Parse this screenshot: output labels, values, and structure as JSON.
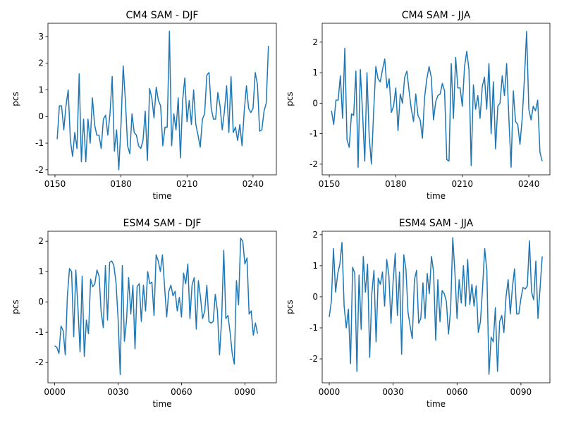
{
  "chart_data": [
    {
      "type": "line",
      "title": "CM4 SAM - DJF",
      "xlabel": "time",
      "ylabel": "pcs",
      "color": "#1f77b4",
      "x": [
        151,
        152,
        153,
        154,
        155,
        156,
        157,
        158,
        159,
        160,
        161,
        162,
        163,
        164,
        165,
        166,
        167,
        168,
        169,
        170,
        171,
        172,
        173,
        174,
        175,
        176,
        177,
        178,
        179,
        180,
        181,
        182,
        183,
        184,
        185,
        186,
        187,
        188,
        189,
        190,
        191,
        192,
        193,
        194,
        195,
        196,
        197,
        198,
        199,
        200,
        201,
        202,
        203,
        204,
        205,
        206,
        207,
        208,
        209,
        210,
        211,
        212,
        213,
        214,
        215,
        216,
        217,
        218,
        219,
        220,
        221,
        222,
        223,
        224,
        225,
        226,
        227,
        228,
        229,
        230,
        231,
        232,
        233,
        234,
        235,
        236,
        237,
        238,
        239,
        240,
        241,
        242,
        243,
        244,
        245,
        246,
        247
      ],
      "values": [
        -0.85,
        0.4,
        0.4,
        -0.5,
        0.4,
        1.0,
        -0.9,
        -1.5,
        -0.6,
        -1.2,
        1.6,
        -1.7,
        -0.1,
        -1.7,
        -0.1,
        -1.0,
        0.7,
        -0.3,
        -0.7,
        -0.7,
        -1.2,
        -0.1,
        0.05,
        -0.7,
        0.1,
        1.5,
        -1.3,
        -0.5,
        -2.0,
        -0.3,
        1.9,
        0.6,
        -1.1,
        -1.4,
        0.1,
        -0.6,
        -0.7,
        -1.1,
        -1.2,
        -0.9,
        0.2,
        -1.65,
        1.05,
        0.7,
        -0.05,
        1.1,
        0.6,
        0.4,
        -1.1,
        -0.4,
        -0.4,
        3.2,
        -1.1,
        0.1,
        -0.5,
        0.7,
        -1.55,
        0.6,
        1.45,
        -0.2,
        0.6,
        -0.3,
        1.0,
        -0.3,
        -0.7,
        -1.15,
        -0.1,
        0.1,
        1.55,
        1.65,
        0.3,
        -0.1,
        -0.1,
        0.9,
        0.4,
        -0.5,
        0.2,
        1.15,
        -0.6,
        1.5,
        -0.6,
        -0.4,
        -0.9,
        -0.3,
        -1.1,
        0.2,
        1.15,
        0.3,
        0.15,
        0.3,
        1.65,
        1.2,
        -0.55,
        -0.5,
        0.2,
        0.5,
        2.65
      ],
      "xlim": [
        146.8,
        250.6
      ],
      "ylim": [
        -2.19,
        3.5
      ],
      "xticks": [
        {
          "value": 150,
          "label": "0150"
        },
        {
          "value": 180,
          "label": "0180"
        },
        {
          "value": 210,
          "label": "0210"
        },
        {
          "value": 240,
          "label": "0240"
        }
      ],
      "yticks": [
        -2,
        -1,
        0,
        1,
        2,
        3
      ]
    },
    {
      "type": "line",
      "title": "CM4 SAM - JJA",
      "xlabel": "time",
      "ylabel": "pcs",
      "color": "#1f77b4",
      "x": [
        151,
        152,
        153,
        154,
        155,
        156,
        157,
        158,
        159,
        160,
        161,
        162,
        163,
        164,
        165,
        166,
        167,
        168,
        169,
        170,
        171,
        172,
        173,
        174,
        175,
        176,
        177,
        178,
        179,
        180,
        181,
        182,
        183,
        184,
        185,
        186,
        187,
        188,
        189,
        190,
        191,
        192,
        193,
        194,
        195,
        196,
        197,
        198,
        199,
        200,
        201,
        202,
        203,
        204,
        205,
        206,
        207,
        208,
        209,
        210,
        211,
        212,
        213,
        214,
        215,
        216,
        217,
        218,
        219,
        220,
        221,
        222,
        223,
        224,
        225,
        226,
        227,
        228,
        229,
        230,
        231,
        232,
        233,
        234,
        235,
        236,
        237,
        238,
        239,
        240,
        241,
        242,
        243,
        244,
        245,
        246
      ],
      "values": [
        -0.25,
        -0.7,
        0.1,
        0.1,
        0.9,
        -0.5,
        1.8,
        -1.2,
        -1.45,
        -0.35,
        -0.4,
        1.05,
        -2.1,
        1.1,
        -0.3,
        -1.9,
        1.0,
        -1.1,
        -2.0,
        -0.3,
        1.2,
        0.8,
        0.7,
        1.1,
        1.45,
        0.5,
        0.8,
        -0.3,
        -0.1,
        0.5,
        -0.9,
        0.3,
        0.0,
        0.85,
        1.05,
        0.4,
        -0.2,
        -0.6,
        0.3,
        -0.4,
        -0.55,
        -1.15,
        0.2,
        0.8,
        1.2,
        0.85,
        -0.55,
        0.05,
        0.25,
        0.3,
        0.65,
        0.4,
        -1.85,
        -1.9,
        1.3,
        -0.5,
        1.5,
        0.5,
        0.5,
        -0.1,
        1.2,
        1.7,
        1.1,
        -2.05,
        0.6,
        -0.2,
        0.25,
        -0.5,
        0.55,
        0.85,
        -0.2,
        1.3,
        -1.0,
        0.7,
        -1.5,
        -0.1,
        0.0,
        0.9,
        0.25,
        1.3,
        -0.5,
        -2.1,
        0.4,
        -0.6,
        -0.7,
        -1.35,
        -0.5,
        0.8,
        2.35,
        -0.2,
        -0.55,
        -0.1,
        -0.25,
        0.1,
        -1.6,
        -1.9
      ],
      "xlim": [
        146.8,
        249.5
      ],
      "ylim": [
        -2.35,
        2.62
      ],
      "xticks": [
        {
          "value": 150,
          "label": "0150"
        },
        {
          "value": 180,
          "label": "0180"
        },
        {
          "value": 210,
          "label": "0210"
        },
        {
          "value": 240,
          "label": "0240"
        }
      ],
      "yticks": [
        -2,
        -1,
        0,
        1,
        2
      ]
    },
    {
      "type": "line",
      "title": "ESM4 SAM - DJF",
      "xlabel": "time",
      "ylabel": "pcs",
      "color": "#1f77b4",
      "x": [
        0,
        1,
        2,
        3,
        4,
        5,
        6,
        7,
        8,
        9,
        10,
        11,
        12,
        13,
        14,
        15,
        16,
        17,
        18,
        19,
        20,
        21,
        22,
        23,
        24,
        25,
        26,
        27,
        28,
        29,
        30,
        31,
        32,
        33,
        34,
        35,
        36,
        37,
        38,
        39,
        40,
        41,
        42,
        43,
        44,
        45,
        46,
        47,
        48,
        49,
        50,
        51,
        52,
        53,
        54,
        55,
        56,
        57,
        58,
        59,
        60,
        61,
        62,
        63,
        64,
        65,
        66,
        67,
        68,
        69,
        70,
        71,
        72,
        73,
        74,
        75,
        76,
        77,
        78,
        79,
        80,
        81,
        82,
        83,
        84,
        85,
        86,
        87,
        88,
        89,
        90,
        91,
        92,
        93,
        94,
        95,
        96
      ],
      "values": [
        -1.45,
        -1.5,
        -1.7,
        -0.8,
        -0.95,
        -1.75,
        0.2,
        1.1,
        1.0,
        -1.15,
        1.05,
        -0.2,
        -1.65,
        0.85,
        -1.8,
        -0.6,
        -1.05,
        0.75,
        0.5,
        0.6,
        1.05,
        0.85,
        -0.35,
        -0.85,
        1.2,
        -0.6,
        1.3,
        1.35,
        1.2,
        0.65,
        -0.55,
        -2.4,
        1.2,
        -1.3,
        -0.6,
        0.8,
        -0.4,
        0.55,
        -1.55,
        0.5,
        0.6,
        -0.65,
        0.55,
        -0.3,
        1.0,
        0.6,
        0.65,
        -0.45,
        1.55,
        1.35,
        1.0,
        1.55,
        0.5,
        -0.5,
        0.35,
        0.55,
        0.2,
        0.35,
        -0.3,
        0.15,
        -0.5,
        0.95,
        0.6,
        1.25,
        -0.55,
        0.55,
        0.8,
        -0.9,
        0.7,
        0.15,
        -0.55,
        -0.3,
        0.55,
        -0.65,
        -0.7,
        -0.65,
        0.25,
        -0.3,
        -1.75,
        -0.6,
        1.7,
        -0.55,
        -0.45,
        -1.0,
        -1.7,
        -2.05,
        0.7,
        -0.1,
        2.1,
        2.0,
        1.25,
        1.45,
        -0.4,
        -0.3,
        -1.1,
        -0.7,
        -1.05
      ],
      "xlim": [
        -3.2,
        104.9
      ],
      "ylim": [
        -2.67,
        2.33
      ],
      "xticks": [
        {
          "value": 0,
          "label": "0000"
        },
        {
          "value": 30,
          "label": "0030"
        },
        {
          "value": 60,
          "label": "0060"
        },
        {
          "value": 90,
          "label": "0090"
        }
      ],
      "yticks": [
        -2,
        -1,
        0,
        1,
        2
      ]
    },
    {
      "type": "line",
      "title": "ESM4 SAM - JJA",
      "xlabel": "time",
      "ylabel": "pcs",
      "color": "#1f77b4",
      "x": [
        0,
        1,
        2,
        3,
        4,
        5,
        6,
        7,
        8,
        9,
        10,
        11,
        12,
        13,
        14,
        15,
        16,
        17,
        18,
        19,
        20,
        21,
        22,
        23,
        24,
        25,
        26,
        27,
        28,
        29,
        30,
        31,
        32,
        33,
        34,
        35,
        36,
        37,
        38,
        39,
        40,
        41,
        42,
        43,
        44,
        45,
        46,
        47,
        48,
        49,
        50,
        51,
        52,
        53,
        54,
        55,
        56,
        57,
        58,
        59,
        60,
        61,
        62,
        63,
        64,
        65,
        66,
        67,
        68,
        69,
        70,
        71,
        72,
        73,
        74,
        75,
        76,
        77,
        78,
        79,
        80,
        81,
        82,
        83,
        84,
        85,
        86,
        87,
        88,
        89,
        90,
        91,
        92,
        93,
        94,
        95,
        96,
        97,
        98,
        99,
        100
      ],
      "values": [
        -0.65,
        -0.15,
        1.55,
        0.15,
        0.75,
        1.05,
        1.75,
        -0.3,
        -1.0,
        -0.4,
        -2.15,
        0.95,
        0.75,
        -2.4,
        0.7,
        -1.05,
        1.3,
        0.15,
        1.05,
        -1.95,
        0.1,
        0.85,
        -1.45,
        0.6,
        0.4,
        0.8,
        -0.3,
        1.2,
        0.7,
        -0.85,
        0.5,
        1.4,
        -0.6,
        0.8,
        -1.85,
        1.35,
        0.9,
        -0.5,
        -0.95,
        -1.35,
        0.55,
        0.85,
        -0.85,
        -0.7,
        0.45,
        -0.7,
        0.75,
        0.1,
        1.3,
        0.8,
        -1.4,
        0.55,
        -0.8,
        0.2,
        0.1,
        -0.15,
        -1.2,
        -0.4,
        1.9,
        0.8,
        -0.7,
        0.55,
        -0.2,
        1.0,
        -0.3,
        1.2,
        -0.25,
        0.4,
        -0.3,
        0.35,
        -1.15,
        -0.8,
        0.3,
        1.55,
        0.85,
        -2.5,
        -1.3,
        -1.45,
        -0.35,
        -2.4,
        -0.8,
        -0.6,
        -1.15,
        0.0,
        0.55,
        -0.55,
        0.3,
        0.9,
        -0.55,
        -0.55,
        -0.05,
        0.3,
        0.25,
        0.35,
        1.8,
        0.15,
        -0.1,
        1.15,
        -0.7,
        0.3,
        1.3
      ],
      "xlim": [
        -3.3,
        103.6
      ],
      "ylim": [
        -2.77,
        2.11
      ],
      "xticks": [
        {
          "value": 0,
          "label": "0000"
        },
        {
          "value": 30,
          "label": "0030"
        },
        {
          "value": 60,
          "label": "0060"
        },
        {
          "value": 90,
          "label": "0090"
        }
      ],
      "yticks": [
        -2,
        -1,
        0,
        1,
        2
      ]
    }
  ]
}
